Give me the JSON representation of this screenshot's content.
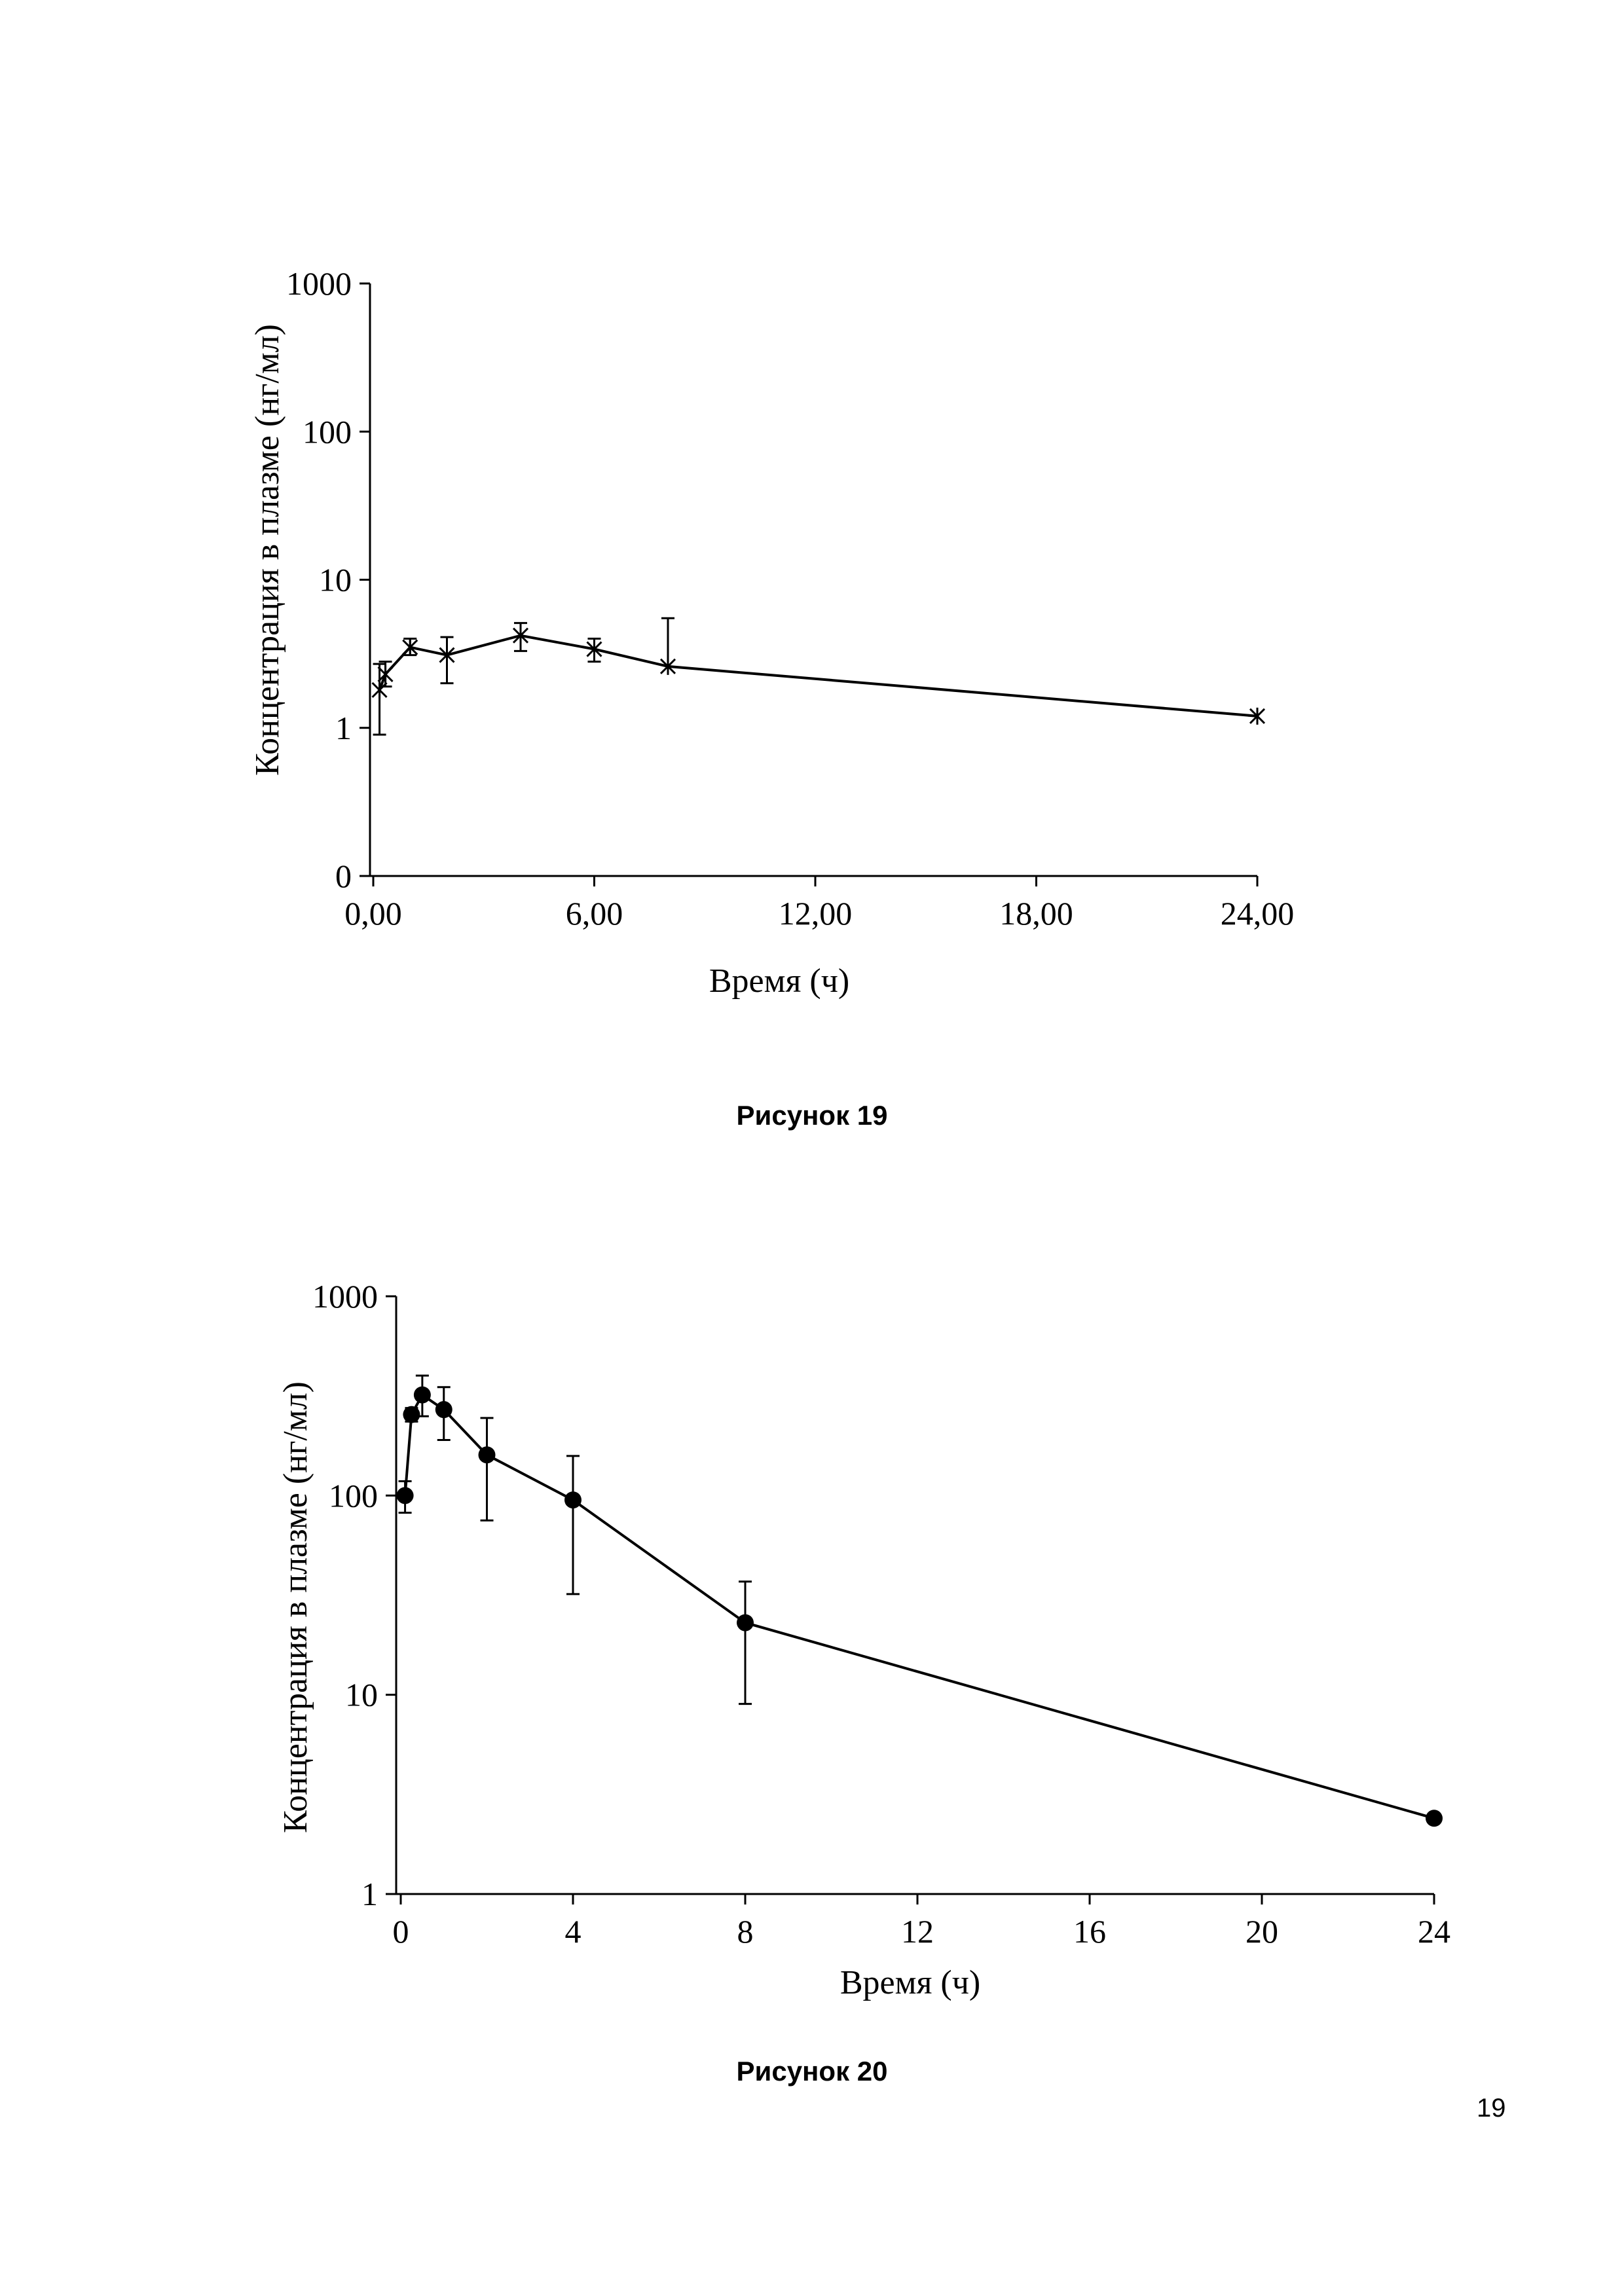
{
  "page": {
    "number": "19"
  },
  "figures": [
    {
      "caption": "Рисунок 19"
    },
    {
      "caption": "Рисунок 20"
    }
  ],
  "chart_data": [
    {
      "type": "line",
      "marker": "asterisk",
      "title": "",
      "xlabel": "Время (ч)",
      "ylabel": "Концентрация в плазме (нг/мл)",
      "yscale": "log",
      "xlim": [
        0,
        24
      ],
      "x_ticks": [
        0,
        6,
        12,
        18,
        24
      ],
      "x_tick_labels": [
        "0,00",
        "6,00",
        "12,00",
        "18,00",
        "24,00"
      ],
      "y_ticks": [
        0.1,
        1,
        10,
        100,
        1000
      ],
      "y_tick_labels": [
        "0",
        "1",
        "10",
        "100",
        "1000"
      ],
      "series": [
        {
          "name": "",
          "x": [
            0.17,
            0.33,
            1,
            2,
            4,
            6,
            8,
            24
          ],
          "y": [
            1.8,
            2.3,
            3.5,
            3.1,
            4.2,
            3.4,
            2.6,
            1.2
          ],
          "err_low": [
            0.9,
            0.4,
            0.4,
            1.1,
            0.9,
            0.6,
            0,
            0
          ],
          "err_high": [
            0.9,
            0.5,
            0.5,
            1.0,
            0.9,
            0.6,
            2.9,
            0
          ]
        }
      ]
    },
    {
      "type": "line",
      "marker": "circle",
      "title": "",
      "xlabel": "Время (ч)",
      "ylabel": "Концентрация в плазме (нг/мл)",
      "yscale": "log",
      "xlim": [
        0,
        24
      ],
      "x_ticks": [
        0,
        4,
        8,
        12,
        16,
        20,
        24
      ],
      "x_tick_labels": [
        "0",
        "4",
        "8",
        "12",
        "16",
        "20",
        "24"
      ],
      "y_ticks": [
        1,
        10,
        100,
        1000
      ],
      "y_tick_labels": [
        "1",
        "10",
        "100",
        "1000"
      ],
      "series": [
        {
          "name": "",
          "x": [
            0.1,
            0.25,
            0.5,
            1,
            2,
            4,
            8,
            24
          ],
          "y": [
            100,
            255,
            320,
            270,
            160,
            95,
            23,
            2.4
          ],
          "err_low": [
            18,
            20,
            70,
            80,
            85,
            63,
            14,
            0
          ],
          "err_high": [
            18,
            20,
            80,
            80,
            85,
            63,
            14,
            0
          ]
        }
      ]
    }
  ]
}
